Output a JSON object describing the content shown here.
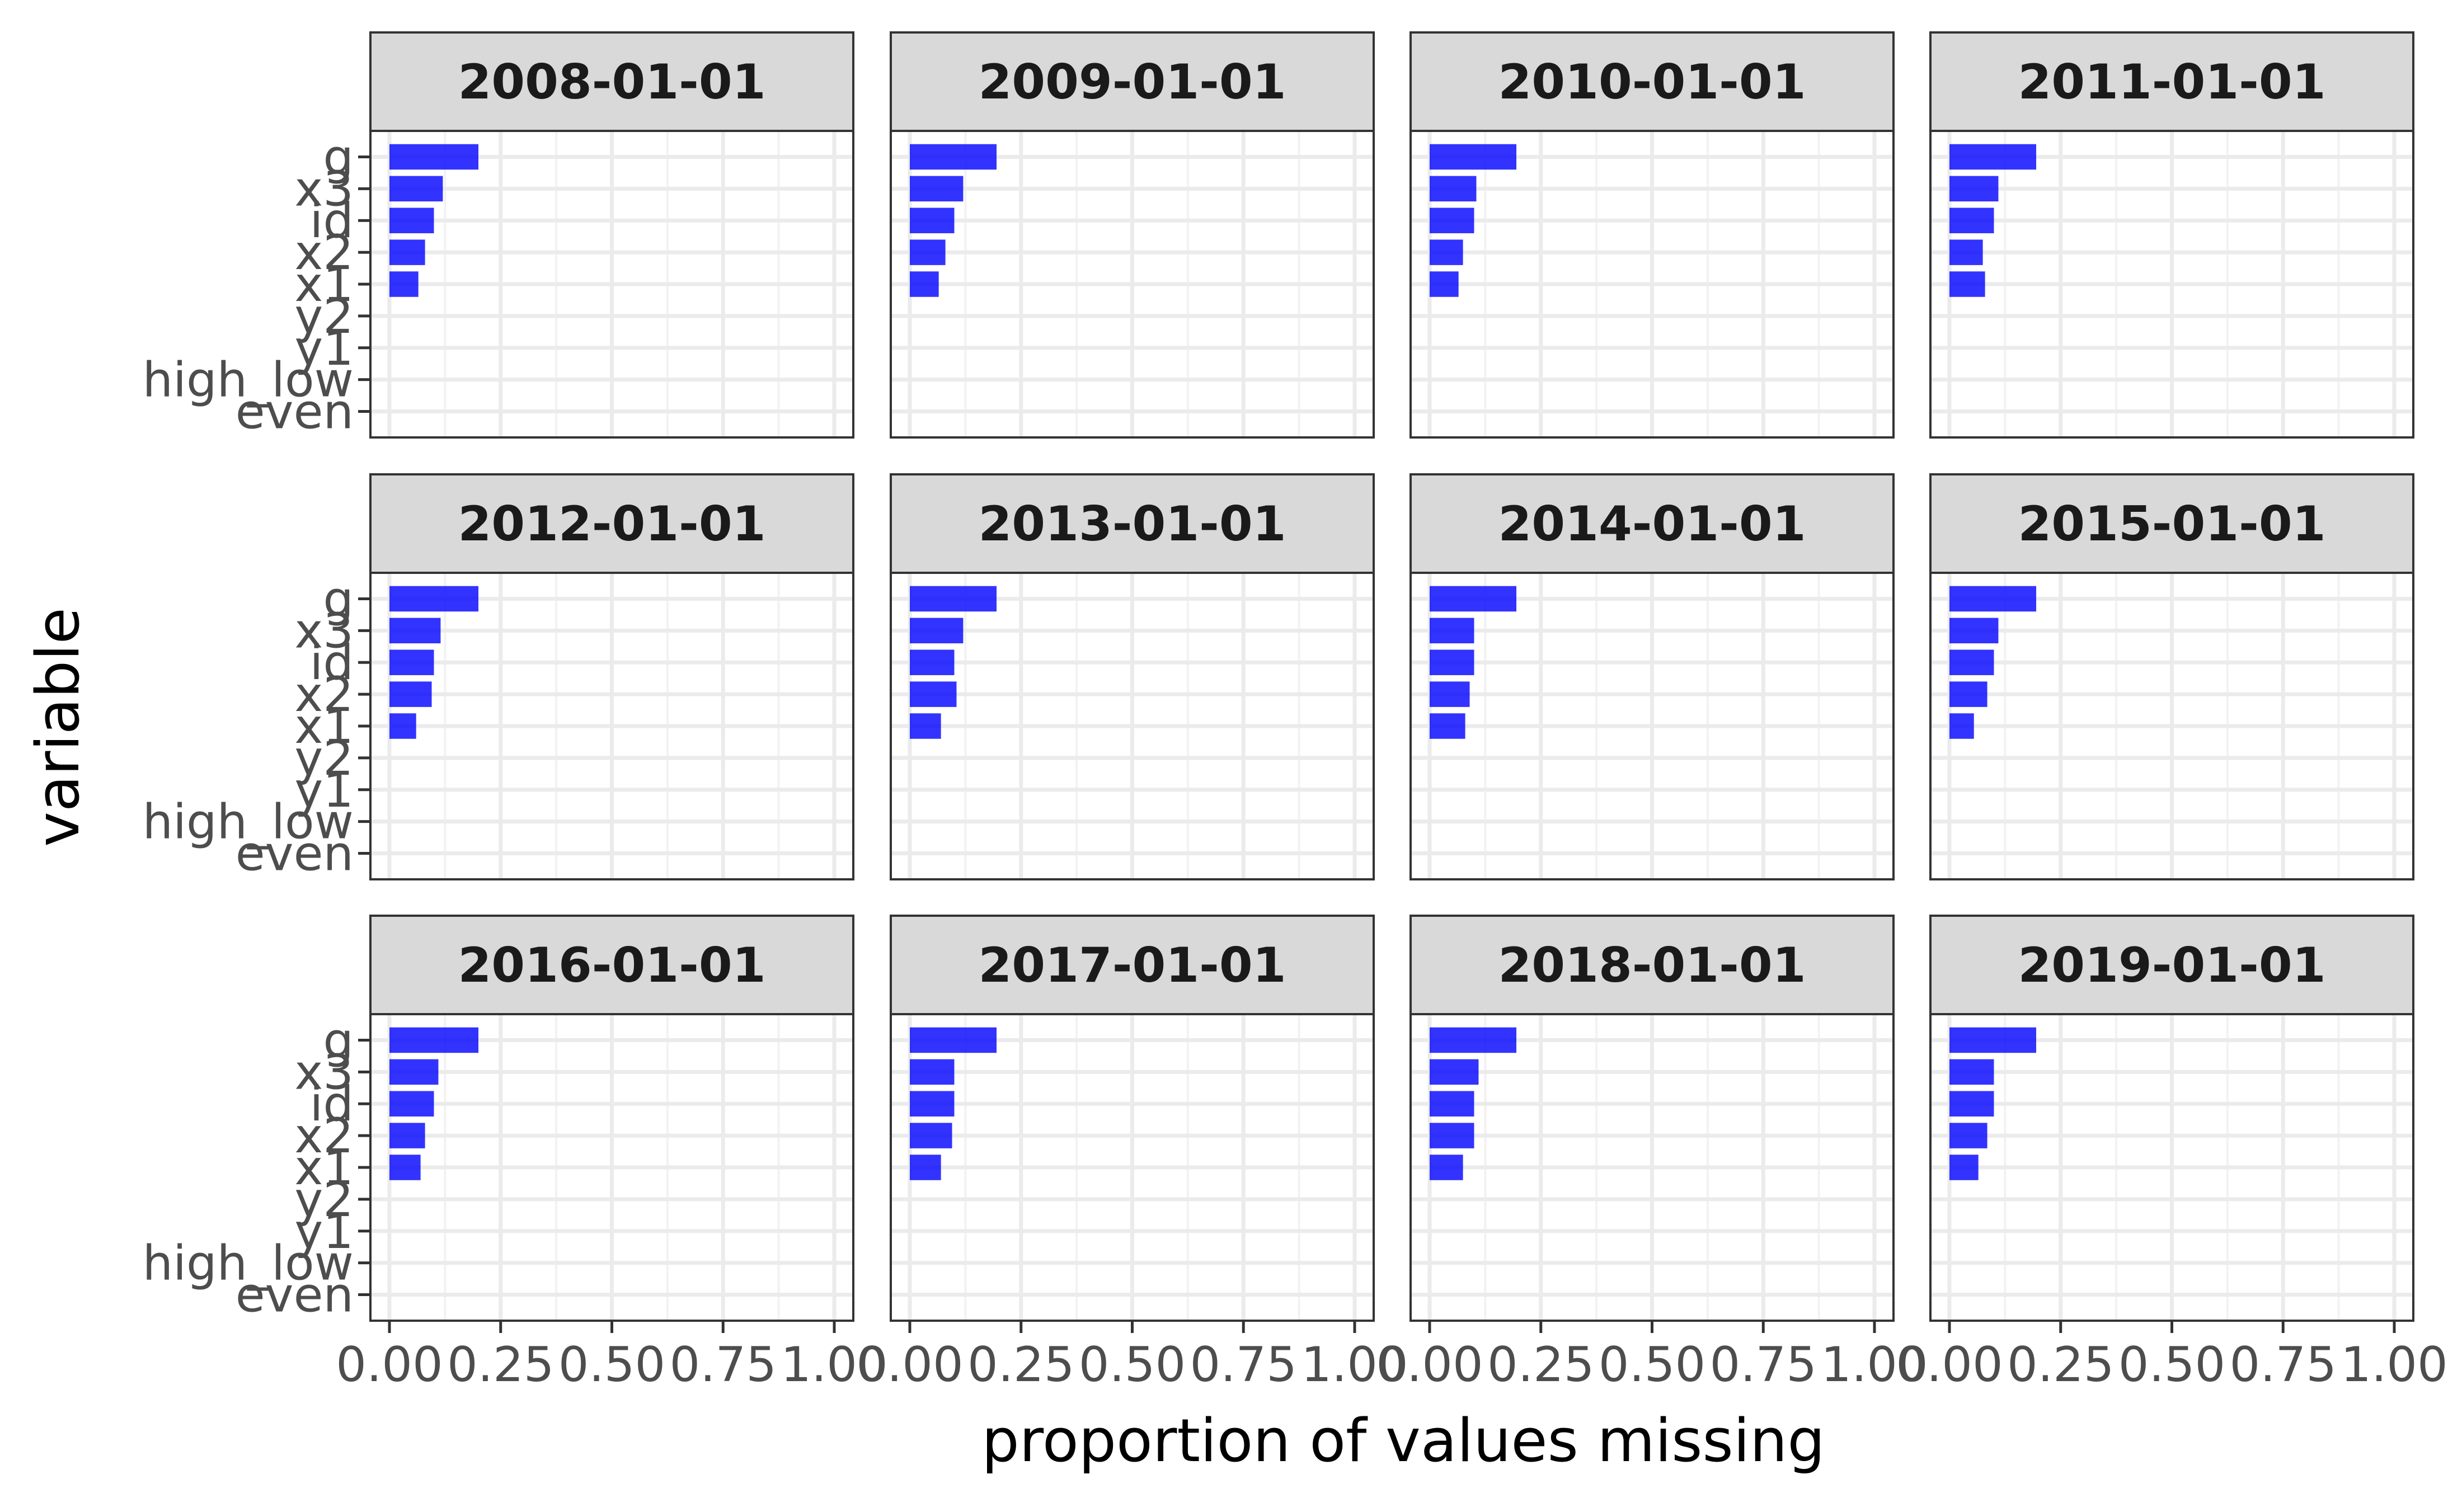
{
  "chart_data": {
    "type": "bar",
    "orientation": "horizontal",
    "facet_layout": "3 rows x 4 columns",
    "xlabel": "proportion of values missing",
    "ylabel": "variable",
    "xlim": [
      0,
      1
    ],
    "x_ticks": [
      "0.00",
      "0.25",
      "0.50",
      "0.75",
      "1.00"
    ],
    "x_tick_values": [
      0,
      0.25,
      0.5,
      0.75,
      1.0
    ],
    "categories": [
      "g",
      "x3",
      "id",
      "x2",
      "x1",
      "y2",
      "y1",
      "high_low",
      "even"
    ],
    "bar_color": "#0000ff",
    "grid": true,
    "strip_fill": "#d9d9d9",
    "facets": [
      {
        "label": "2008-01-01",
        "values": [
          0.2,
          0.12,
          0.1,
          0.08,
          0.065,
          0,
          0,
          0,
          0
        ]
      },
      {
        "label": "2009-01-01",
        "values": [
          0.195,
          0.12,
          0.1,
          0.08,
          0.065,
          0,
          0,
          0,
          0
        ]
      },
      {
        "label": "2010-01-01",
        "values": [
          0.195,
          0.105,
          0.1,
          0.075,
          0.065,
          0,
          0,
          0,
          0
        ]
      },
      {
        "label": "2011-01-01",
        "values": [
          0.195,
          0.11,
          0.1,
          0.075,
          0.08,
          0,
          0,
          0,
          0
        ]
      },
      {
        "label": "2012-01-01",
        "values": [
          0.2,
          0.115,
          0.1,
          0.095,
          0.06,
          0,
          0,
          0,
          0
        ]
      },
      {
        "label": "2013-01-01",
        "values": [
          0.195,
          0.12,
          0.1,
          0.105,
          0.07,
          0,
          0,
          0,
          0
        ]
      },
      {
        "label": "2014-01-01",
        "values": [
          0.195,
          0.1,
          0.1,
          0.09,
          0.08,
          0,
          0,
          0,
          0
        ]
      },
      {
        "label": "2015-01-01",
        "values": [
          0.195,
          0.11,
          0.1,
          0.085,
          0.055,
          0,
          0,
          0,
          0
        ]
      },
      {
        "label": "2016-01-01",
        "values": [
          0.2,
          0.11,
          0.1,
          0.08,
          0.07,
          0,
          0,
          0,
          0
        ]
      },
      {
        "label": "2017-01-01",
        "values": [
          0.195,
          0.1,
          0.1,
          0.095,
          0.07,
          0,
          0,
          0,
          0
        ]
      },
      {
        "label": "2018-01-01",
        "values": [
          0.195,
          0.11,
          0.1,
          0.1,
          0.075,
          0,
          0,
          0,
          0
        ]
      },
      {
        "label": "2019-01-01",
        "values": [
          0.195,
          0.1,
          0.1,
          0.085,
          0.065,
          0,
          0,
          0,
          0
        ]
      }
    ]
  }
}
